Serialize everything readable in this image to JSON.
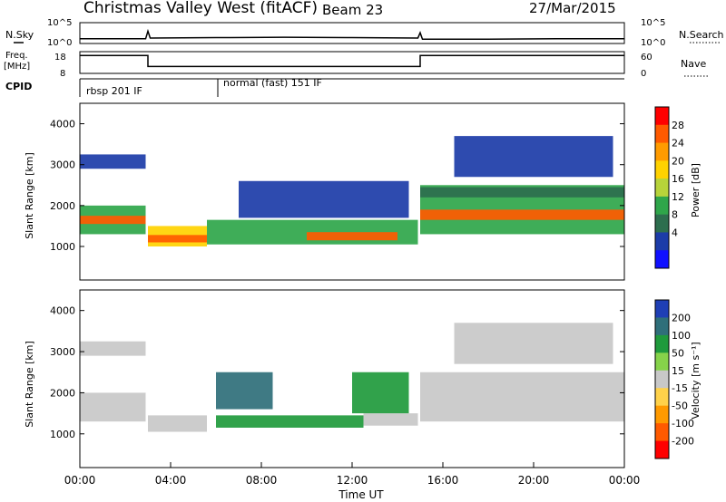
{
  "header": {
    "station": "Christmas Valley West (fitACF)",
    "beam": "Beam 23",
    "date": "27/Mar/2015"
  },
  "noise_panel": {
    "left_label": "N.Sky",
    "right_label": "N.Search",
    "left_ticks": [
      "10^5",
      "10^0"
    ],
    "right_ticks": [
      "10^5",
      "10^0"
    ]
  },
  "freq_panel": {
    "left_label_1": "Freq.",
    "left_label_2": "[MHz]",
    "right_label": "Nave",
    "left_ticks": [
      "18",
      "8"
    ],
    "right_ticks": [
      "60",
      "0"
    ]
  },
  "cpid": {
    "label": "CPID",
    "modes": [
      {
        "name": "rbsp 201 IF",
        "start_hour": 0,
        "end_hour": 6
      },
      {
        "name": "normal (fast) 151 IF",
        "start_hour": 6,
        "end_hour": 24
      }
    ]
  },
  "power_panel": {
    "ylabel": "Slant Range [km]",
    "colorbar_label": "Power [dB]",
    "colorbar_ticks": [
      "28",
      "24",
      "20",
      "16",
      "12",
      "8",
      "4"
    ],
    "colorbar_colors": [
      "#ff0000",
      "#ff5a00",
      "#ff9b00",
      "#ffd200",
      "#b7d33a",
      "#2fa64a",
      "#2d6e4e",
      "#1c3ca8",
      "#1010ff"
    ]
  },
  "velocity_panel": {
    "ylabel": "Slant Range [km]",
    "colorbar_label": "Velocity [m s⁻¹]",
    "colorbar_ticks": [
      "200",
      "100",
      "50",
      "15",
      "-15",
      "-50",
      "-100",
      "-200"
    ],
    "colorbar_colors": [
      "#1f3fb5",
      "#2f6f7a",
      "#1f9a3c",
      "#86d34a",
      "#c8c8c8",
      "#ffd24a",
      "#ff9a00",
      "#ff5a00",
      "#ff0000"
    ]
  },
  "range_ticks": [
    "4000",
    "3000",
    "2000",
    "1000"
  ],
  "time_ticks": [
    "00:00",
    "04:00",
    "08:00",
    "12:00",
    "16:00",
    "20:00",
    "00:00"
  ],
  "xlabel": "Time UT",
  "chart_data": [
    {
      "type": "line",
      "name": "noise_sky",
      "x_hours": [
        0,
        2.9,
        3.0,
        3.1,
        6,
        9,
        12,
        14.9,
        15,
        15.1,
        18,
        21,
        24
      ],
      "log10_values": [
        1.0,
        1.0,
        3.0,
        1.2,
        1.3,
        1.4,
        1.3,
        1.2,
        2.6,
        0.9,
        0.9,
        1.0,
        1.0
      ],
      "ylim": [
        0,
        5
      ]
    },
    {
      "type": "line",
      "name": "frequency",
      "x_hours": [
        0,
        3,
        3,
        15,
        15,
        24
      ],
      "values_mhz": [
        16.5,
        16.5,
        11.0,
        11.0,
        16.5,
        16.5
      ],
      "ylim": [
        8,
        18
      ]
    },
    {
      "type": "heatmap",
      "name": "power",
      "xlim": [
        0,
        24
      ],
      "ylim": [
        180,
        4500
      ],
      "bands": [
        {
          "t0": 0.0,
          "t1": 2.9,
          "r0": 1300,
          "r1": 2000,
          "value": 14
        },
        {
          "t0": 0.0,
          "t1": 2.9,
          "r0": 1550,
          "r1": 1750,
          "value": 26
        },
        {
          "t0": 0.0,
          "t1": 2.9,
          "r0": 2900,
          "r1": 3250,
          "value": 5
        },
        {
          "t0": 3.0,
          "t1": 5.6,
          "r0": 1000,
          "r1": 1500,
          "value": 18
        },
        {
          "t0": 3.0,
          "t1": 5.6,
          "r0": 1100,
          "r1": 1280,
          "value": 28
        },
        {
          "t0": 5.6,
          "t1": 14.9,
          "r0": 1050,
          "r1": 1650,
          "value": 14
        },
        {
          "t0": 10.0,
          "t1": 14.0,
          "r0": 1150,
          "r1": 1350,
          "value": 27
        },
        {
          "t0": 7.0,
          "t1": 14.5,
          "r0": 1700,
          "r1": 2600,
          "value": 6
        },
        {
          "t0": 15.0,
          "t1": 24.0,
          "r0": 1300,
          "r1": 2500,
          "value": 13
        },
        {
          "t0": 15.0,
          "t1": 24.0,
          "r0": 1650,
          "r1": 1900,
          "value": 25
        },
        {
          "t0": 15.0,
          "t1": 24.0,
          "r0": 2200,
          "r1": 2450,
          "value": 8
        },
        {
          "t0": 16.5,
          "t1": 23.5,
          "r0": 2700,
          "r1": 3700,
          "value": 5
        }
      ]
    },
    {
      "type": "heatmap",
      "name": "velocity",
      "xlim": [
        0,
        24
      ],
      "ylim": [
        180,
        4500
      ],
      "bands": [
        {
          "t0": 0.0,
          "t1": 2.9,
          "r0": 1300,
          "r1": 2000,
          "value": 0
        },
        {
          "t0": 0.0,
          "t1": 2.9,
          "r0": 2900,
          "r1": 3250,
          "value": 0
        },
        {
          "t0": 3.0,
          "t1": 5.6,
          "r0": 1050,
          "r1": 1450,
          "value": 0
        },
        {
          "t0": 6.0,
          "t1": 12.5,
          "r0": 1150,
          "r1": 1450,
          "value": 60
        },
        {
          "t0": 12.5,
          "t1": 14.9,
          "r0": 1200,
          "r1": 1500,
          "value": 0
        },
        {
          "t0": 6.0,
          "t1": 8.5,
          "r0": 1600,
          "r1": 2500,
          "value": 150
        },
        {
          "t0": 12.0,
          "t1": 14.5,
          "r0": 1500,
          "r1": 2500,
          "value": 60
        },
        {
          "t0": 15.0,
          "t1": 24.0,
          "r0": 1300,
          "r1": 2500,
          "value": 0
        },
        {
          "t0": 16.5,
          "t1": 23.5,
          "r0": 2700,
          "r1": 3700,
          "value": 0
        }
      ]
    }
  ]
}
